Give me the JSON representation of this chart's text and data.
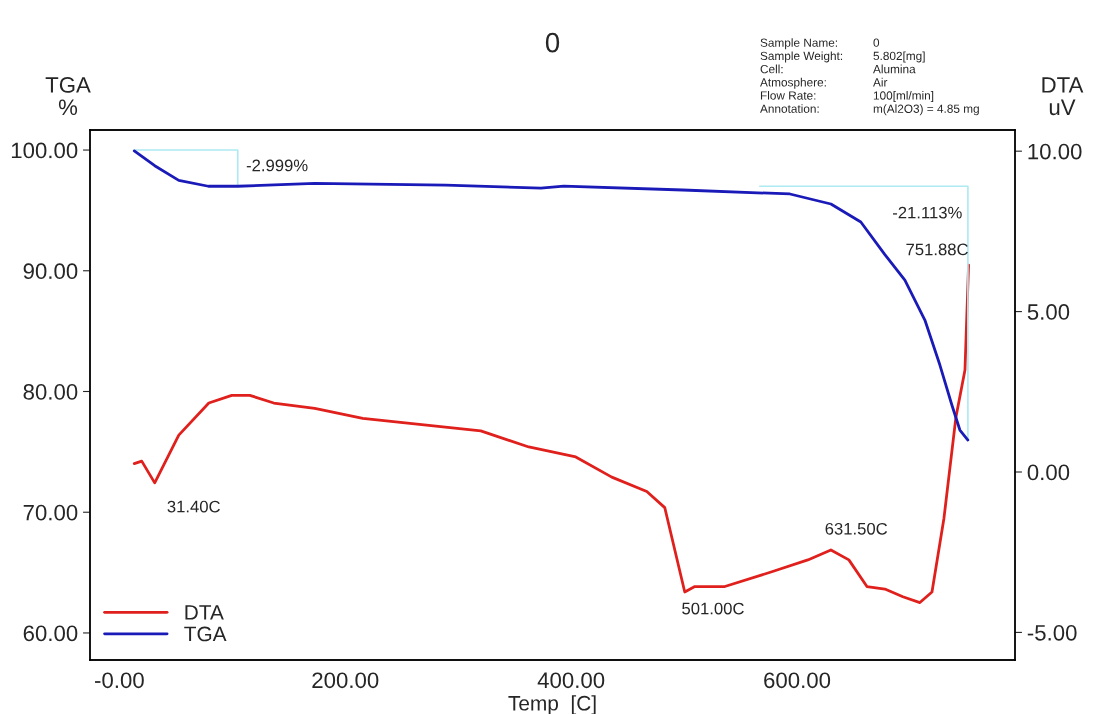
{
  "chart_data": {
    "type": "line",
    "title": "0",
    "xlabel": "Temp  [C]",
    "ylabel": "TGA\n%",
    "y2label": "DTA\nuV",
    "xlim": [
      -26,
      793
    ],
    "xticks": [
      {
        "value": 0,
        "label": "-0.00"
      },
      {
        "value": 200,
        "label": "200.00"
      },
      {
        "value": 400,
        "label": "400.00"
      },
      {
        "value": 600,
        "label": "600.00"
      }
    ],
    "ylim": [
      57.76,
      101.66
    ],
    "yticks": [
      {
        "value": 60,
        "label": "60.00"
      },
      {
        "value": 70,
        "label": "70.00"
      },
      {
        "value": 80,
        "label": "80.00"
      },
      {
        "value": 90,
        "label": "90.00"
      },
      {
        "value": 100,
        "label": "100.00"
      }
    ],
    "y2lim": [
      -5.86,
      10.66
    ],
    "y2ticks": [
      {
        "value": -5,
        "label": "-5.00"
      },
      {
        "value": 0,
        "label": "0.00"
      },
      {
        "value": 5,
        "label": "5.00"
      },
      {
        "value": 10,
        "label": "10.00"
      }
    ],
    "series": [
      {
        "name": "DTA",
        "color": "#e0201c",
        "axis": "y2",
        "x": [
          13.2,
          19.8,
          31.3,
          52.6,
          79.2,
          99.5,
          115.5,
          136.7,
          173.0,
          215.5,
          267.7,
          320.0,
          362.5,
          404.1,
          436.0,
          467.0,
          482.9,
          500.6,
          509.5,
          536.1,
          577.7,
          609.6,
          630.0,
          645.9,
          661.9,
          677.8,
          693.7,
          708.8,
          719.5,
          730.1,
          740.7,
          748.7,
          751.88
        ],
        "values": [
          0.26,
          0.34,
          -0.34,
          1.15,
          2.15,
          2.39,
          2.39,
          2.15,
          1.98,
          1.67,
          1.48,
          1.28,
          0.78,
          0.47,
          -0.16,
          -0.61,
          -1.11,
          -3.74,
          -3.57,
          -3.57,
          -3.11,
          -2.74,
          -2.43,
          -2.74,
          -3.57,
          -3.65,
          -3.89,
          -4.07,
          -3.74,
          -1.44,
          1.71,
          3.18,
          6.45
        ]
      },
      {
        "name": "TGA",
        "color": "#1a1ab8",
        "x": [
          13.2,
          31.3,
          52.6,
          78.8,
          104.8,
          173.0,
          289.0,
          373.2,
          393.5,
          498.9,
          593.7,
          630.0,
          656.5,
          677.8,
          695.5,
          713.2,
          726.5,
          737.1,
          744.2,
          751.3
        ],
        "values": [
          99.93,
          98.7,
          97.49,
          97.0,
          97.0,
          97.24,
          97.1,
          96.85,
          97.02,
          96.69,
          96.36,
          95.53,
          94.04,
          91.34,
          89.23,
          85.92,
          82.19,
          78.88,
          76.81,
          75.98
        ]
      },
      {
        "color": "#aeeaf2",
        "x": [
          13.2,
          104.8,
          104.8
        ],
        "values": [
          100.0,
          100.0,
          97.0
        ]
      },
      {
        "color": "#aeeaf2",
        "x": [
          567.0,
          751.3,
          751.3
        ],
        "values": [
          97.0,
          97.0,
          75.98
        ]
      }
    ],
    "legend": "bottom left",
    "grid": false,
    "marker": "none",
    "line_style": "solid",
    "annotations": [
      {
        "text": "-2.999%",
        "x": 104.8,
        "y": 97.0
      },
      {
        "text": "-21.113%",
        "x": 751.3,
        "y": 97.0
      },
      {
        "text": "31.40C",
        "x": 31.4,
        "y": 72.42
      },
      {
        "text": "501.00C",
        "x": 501.0,
        "y": 63.4
      },
      {
        "text": "631.50C",
        "x": 631.5,
        "y": 66.21
      },
      {
        "text": "751.88C",
        "x": 751.88,
        "y": 90.5
      },
      "Sample Name:\t0",
      "Sample Weight:\t5.802[mg]",
      "Cell:\tAlumina",
      "Atmosphere:\tAir",
      "Flow Rate:\t100[ml/min]",
      "Annotation:\tm(Al2O3) = 4.85 mg"
    ]
  }
}
